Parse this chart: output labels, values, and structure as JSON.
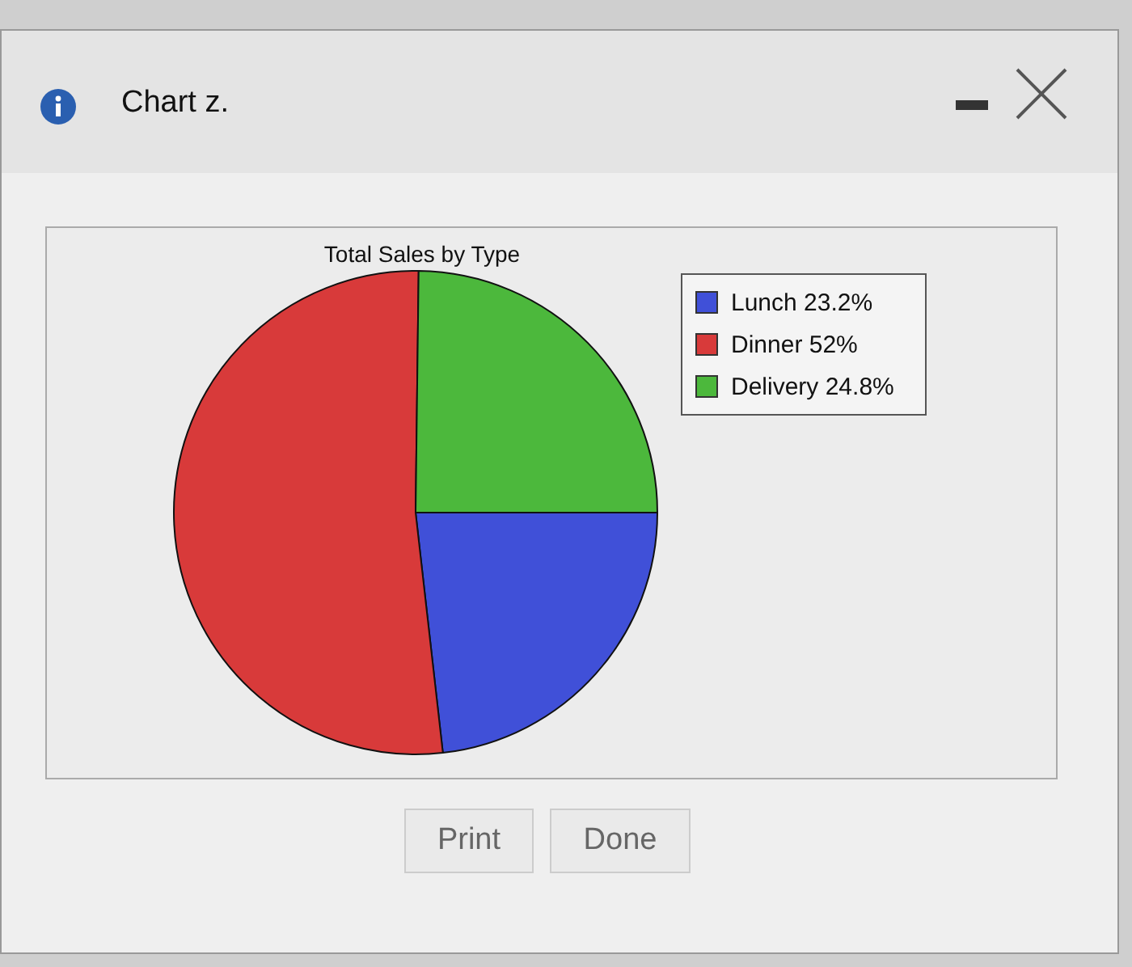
{
  "chart_data": {
    "type": "pie",
    "title": "Total Sales by Type",
    "categories": [
      "Lunch",
      "Dinner",
      "Delivery"
    ],
    "values": [
      23.2,
      52,
      24.8
    ],
    "value_labels": [
      "23.2%",
      "52%",
      "24.8%"
    ],
    "colors": [
      "#4050d8",
      "#d83a3a",
      "#4cb83c"
    ],
    "legend": "top right",
    "annotations": [
      "Chart z.",
      "Print",
      "Done"
    ]
  }
}
